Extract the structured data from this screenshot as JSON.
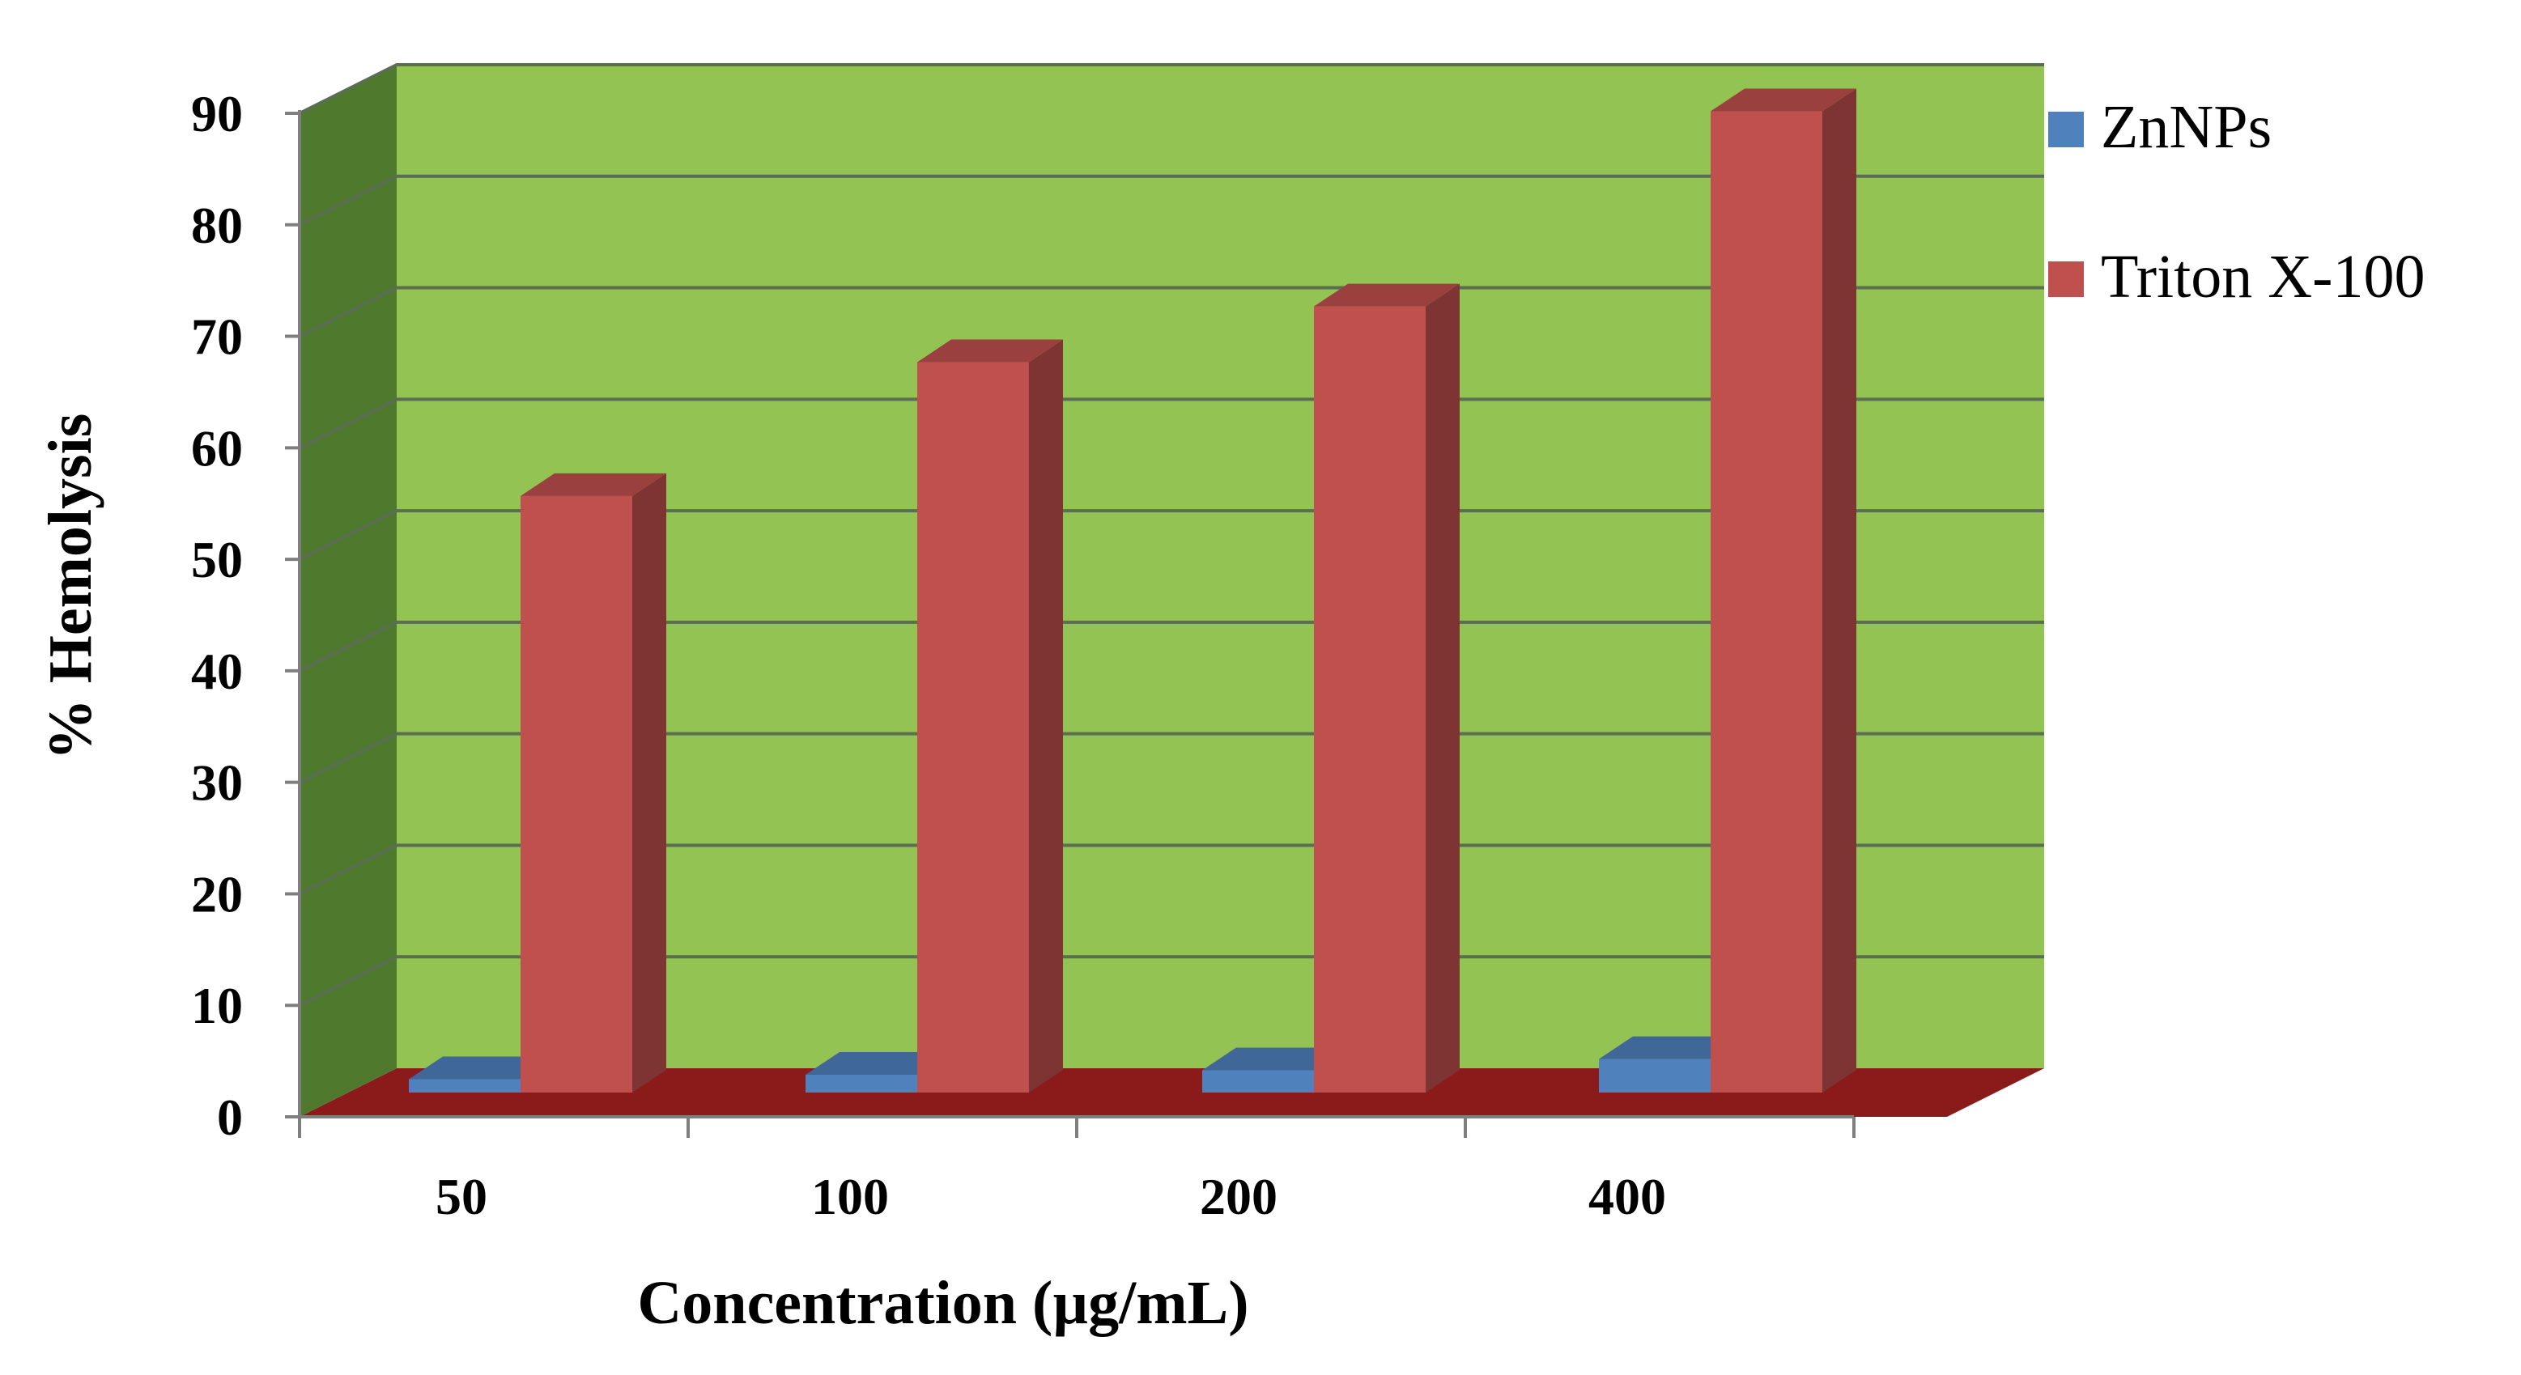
{
  "chart_data": {
    "type": "bar",
    "style": "3d-clustered-column",
    "title": "",
    "xlabel": "Concentration  (µg/mL)",
    "ylabel": "% Hemolysis",
    "categories": [
      "50",
      "100",
      "200",
      "400"
    ],
    "ylim": [
      0,
      90
    ],
    "yticks": [
      0,
      10,
      20,
      30,
      40,
      50,
      60,
      70,
      80,
      90
    ],
    "grid": true,
    "legend": "right",
    "series": [
      {
        "name": "ZnNPs",
        "values": [
          1.2,
          1.6,
          2.0,
          3.0
        ],
        "color": "#4f81bd"
      },
      {
        "name": "Triton X-100",
        "values": [
          53.5,
          65.5,
          70.5,
          88
        ],
        "color": "#c0504d"
      }
    ],
    "colors": {
      "back_wall": "#92c353",
      "side_wall": "#4f7a2e",
      "floor": "#8b1a1a",
      "gridline": "#5a6e52"
    }
  }
}
